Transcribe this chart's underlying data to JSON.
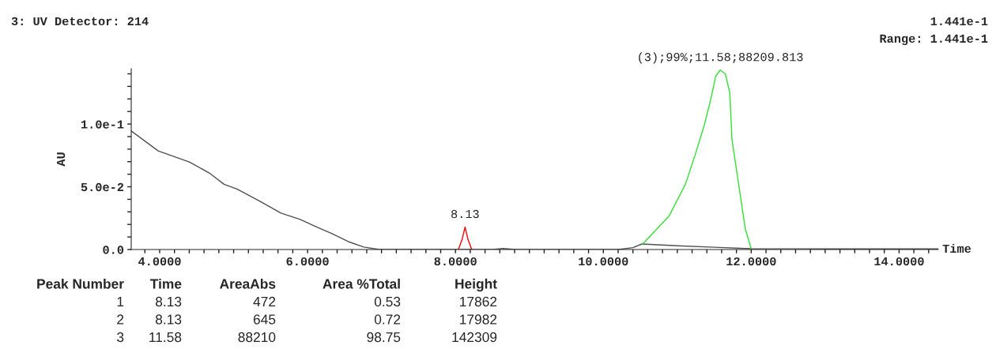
{
  "chart_data": {
    "type": "line",
    "title": "3: UV Detector: 214",
    "xlabel": "Time",
    "ylabel": "AU",
    "xlim": [
      3.615,
      14.53
    ],
    "ylim": [
      0,
      0.1441
    ],
    "xticks": [
      {
        "value": 3.8,
        "label": null
      },
      {
        "value": 4.0,
        "label": "4.0000"
      },
      {
        "value": 4.2,
        "label": null
      },
      {
        "value": 4.4,
        "label": null
      },
      {
        "value": 4.6,
        "label": null
      },
      {
        "value": 4.8,
        "label": null
      },
      {
        "value": 5.0,
        "label": null
      },
      {
        "value": 5.2,
        "label": null
      },
      {
        "value": 5.4,
        "label": null
      },
      {
        "value": 5.6,
        "label": null
      },
      {
        "value": 5.8,
        "label": null
      },
      {
        "value": 6.0,
        "label": "6.0000"
      },
      {
        "value": 6.2,
        "label": null
      },
      {
        "value": 6.4,
        "label": null
      },
      {
        "value": 6.6,
        "label": null
      },
      {
        "value": 6.8,
        "label": null
      },
      {
        "value": 7.0,
        "label": null
      },
      {
        "value": 7.2,
        "label": null
      },
      {
        "value": 7.4,
        "label": null
      },
      {
        "value": 7.6,
        "label": null
      },
      {
        "value": 7.8,
        "label": null
      },
      {
        "value": 8.0,
        "label": "8.0000"
      },
      {
        "value": 8.2,
        "label": null
      },
      {
        "value": 8.4,
        "label": null
      },
      {
        "value": 8.6,
        "label": null
      },
      {
        "value": 8.8,
        "label": null
      },
      {
        "value": 9.0,
        "label": null
      },
      {
        "value": 9.2,
        "label": null
      },
      {
        "value": 9.4,
        "label": null
      },
      {
        "value": 9.6,
        "label": null
      },
      {
        "value": 9.8,
        "label": null
      },
      {
        "value": 10.0,
        "label": "10.0000"
      },
      {
        "value": 10.2,
        "label": null
      },
      {
        "value": 10.4,
        "label": null
      },
      {
        "value": 10.6,
        "label": null
      },
      {
        "value": 10.8,
        "label": null
      },
      {
        "value": 11.0,
        "label": null
      },
      {
        "value": 11.2,
        "label": null
      },
      {
        "value": 11.4,
        "label": null
      },
      {
        "value": 11.6,
        "label": null
      },
      {
        "value": 11.8,
        "label": null
      },
      {
        "value": 12.0,
        "label": "12.0000"
      },
      {
        "value": 12.2,
        "label": null
      },
      {
        "value": 12.4,
        "label": null
      },
      {
        "value": 12.6,
        "label": null
      },
      {
        "value": 12.8,
        "label": null
      },
      {
        "value": 13.0,
        "label": null
      },
      {
        "value": 13.2,
        "label": null
      },
      {
        "value": 13.4,
        "label": null
      },
      {
        "value": 13.6,
        "label": null
      },
      {
        "value": 13.8,
        "label": null
      },
      {
        "value": 14.0,
        "label": "14.0000"
      },
      {
        "value": 14.2,
        "label": null
      },
      {
        "value": 14.4,
        "label": null
      }
    ],
    "yticks": [
      {
        "value": 0,
        "label": "0.0"
      },
      {
        "value": 0.01,
        "label": null
      },
      {
        "value": 0.02,
        "label": null
      },
      {
        "value": 0.03,
        "label": null
      },
      {
        "value": 0.04,
        "label": null
      },
      {
        "value": 0.05,
        "label": "5.0e-2"
      },
      {
        "value": 0.06,
        "label": null
      },
      {
        "value": 0.07,
        "label": null
      },
      {
        "value": 0.08,
        "label": null
      },
      {
        "value": 0.09,
        "label": null
      },
      {
        "value": 0.1,
        "label": "1.0e-1"
      },
      {
        "value": 0.11,
        "label": null
      },
      {
        "value": 0.12,
        "label": null
      },
      {
        "value": 0.13,
        "label": null
      },
      {
        "value": 0.14,
        "label": null
      }
    ],
    "grid": false,
    "legend": false,
    "marker": "none",
    "line_style": "solid",
    "series": [
      {
        "color": "#505050",
        "x": [
          3.615,
          3.98,
          4.4,
          4.67,
          4.87,
          5.05,
          5.37,
          5.64,
          5.9,
          6.12,
          6.33,
          6.55,
          6.76,
          6.97,
          7.5,
          8.0,
          8.5,
          8.65,
          8.8,
          9.5,
          10.2,
          10.4,
          10.52,
          11.0,
          11.5,
          12.0,
          13.0,
          14.0,
          14.53
        ],
        "values": [
          0.0945,
          0.0786,
          0.0698,
          0.061,
          0.052,
          0.048,
          0.038,
          0.029,
          0.024,
          0.018,
          0.0126,
          0.0063,
          0.002,
          0.0,
          0.0,
          0.0,
          0.0,
          0.0008,
          0.0,
          0.0,
          0.0,
          0.0015,
          0.0044,
          0.003,
          0.0018,
          0.0006,
          0.0005,
          0.0005,
          0.0005
        ]
      },
      {
        "color": "#ff0000",
        "x": [
          8.04,
          8.09,
          8.13,
          8.17,
          8.22
        ],
        "values": [
          0.0,
          0.008,
          0.0179,
          0.008,
          0.0
        ]
      },
      {
        "color": "#33e033",
        "x": [
          10.53,
          10.89,
          11.11,
          11.25,
          11.36,
          11.45,
          11.52,
          11.58,
          11.65,
          11.71,
          11.74,
          11.82,
          11.92,
          12.0
        ],
        "values": [
          0.0042,
          0.0268,
          0.052,
          0.077,
          0.098,
          0.119,
          0.138,
          0.143,
          0.14,
          0.125,
          0.0876,
          0.056,
          0.0164,
          0.0006
        ]
      }
    ],
    "annotations": [
      "1.441e-1",
      "Range: 1.441e-1",
      {
        "text": "(3);99%;11.58;88209.813",
        "x": 11.58,
        "y": 0.143
      },
      {
        "text": "8.13",
        "x": 8.13,
        "y": 0.0179
      },
      "Peak Number",
      "Time",
      "AreaAbs",
      "Area %Total",
      "Height",
      "1",
      "8.13",
      "472",
      "0.53",
      "17862",
      "2",
      "8.13",
      "645",
      "0.72",
      "17982",
      "3",
      "11.58",
      "88210",
      "98.75",
      "142309"
    ]
  }
}
